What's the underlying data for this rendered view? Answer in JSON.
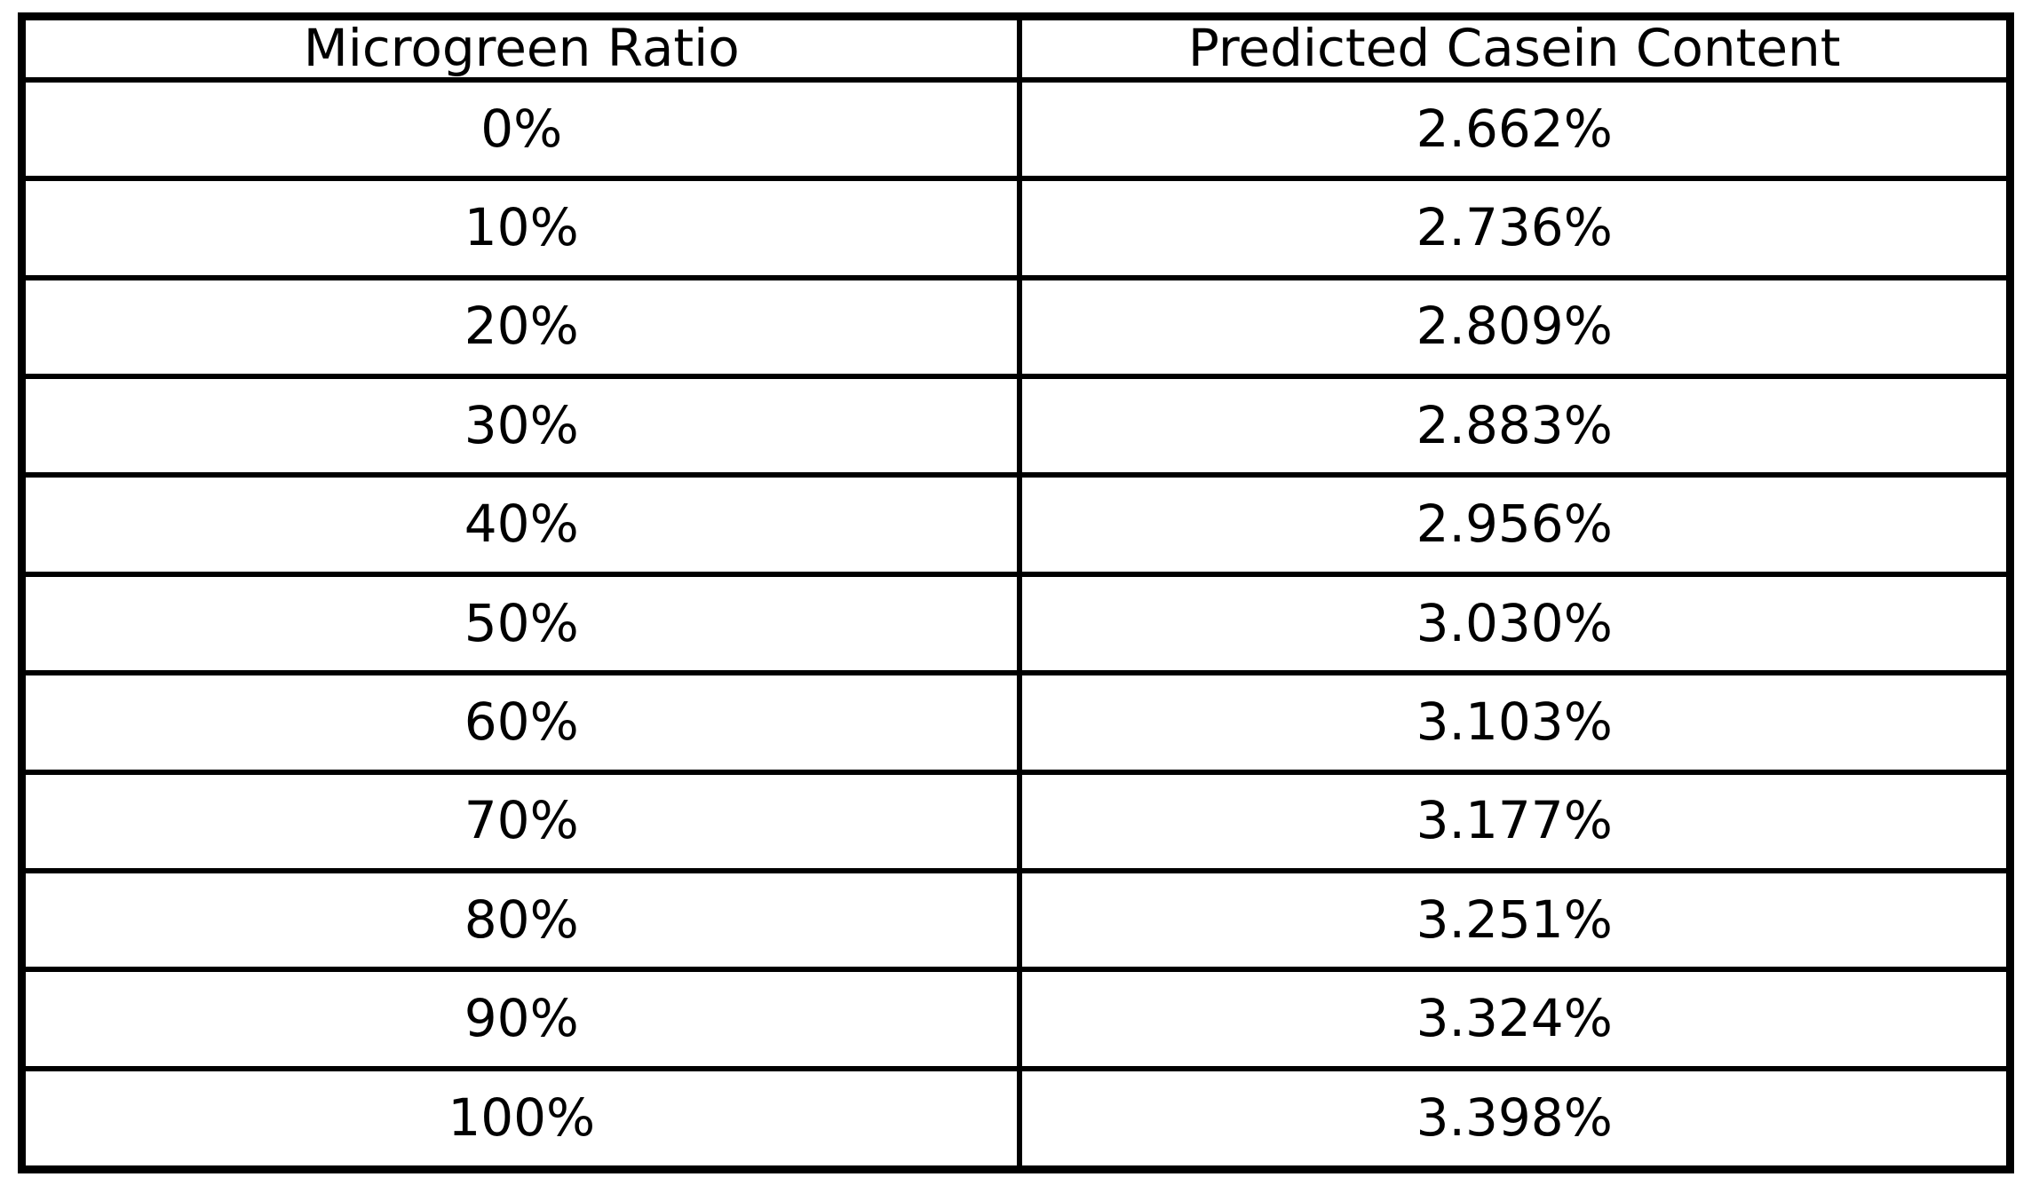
{
  "chart_data": {
    "type": "table",
    "title": "",
    "columns": [
      "Microgreen Ratio",
      "Predicted Casein Content"
    ],
    "rows": [
      [
        "0%",
        "2.662%"
      ],
      [
        "10%",
        "2.736%"
      ],
      [
        "20%",
        "2.809%"
      ],
      [
        "30%",
        "2.883%"
      ],
      [
        "40%",
        "2.956%"
      ],
      [
        "50%",
        "3.030%"
      ],
      [
        "60%",
        "3.103%"
      ],
      [
        "70%",
        "3.177%"
      ],
      [
        "80%",
        "3.251%"
      ],
      [
        "90%",
        "3.324%"
      ],
      [
        "100%",
        "3.398%"
      ]
    ],
    "x_series_name": "Microgreen Ratio",
    "y_series_name": "Predicted Casein Content",
    "x_values_percent": [
      0,
      10,
      20,
      30,
      40,
      50,
      60,
      70,
      80,
      90,
      100
    ],
    "y_values_percent": [
      2.662,
      2.736,
      2.809,
      2.883,
      2.956,
      3.03,
      3.103,
      3.177,
      3.251,
      3.324,
      3.398
    ]
  },
  "colors": {
    "border": "#000000",
    "background": "#ffffff",
    "text": "#000000"
  }
}
